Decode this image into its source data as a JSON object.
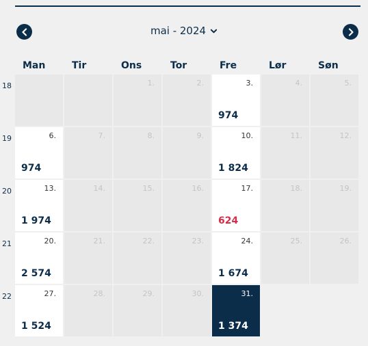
{
  "header": {
    "month_label": "mai - 2024",
    "prev_icon": "chevron-left-icon",
    "next_icon": "chevron-right-icon",
    "dropdown_icon": "chevron-down-icon",
    "accent_color": "#0b2d4a",
    "highlight_color": "#d32f4a"
  },
  "weekdays": [
    "Man",
    "Tir",
    "Ons",
    "Tor",
    "Fre",
    "Lør",
    "Søn"
  ],
  "weeks": [
    {
      "number": "18",
      "days": [
        {
          "label": "",
          "price": ""
        },
        {
          "label": "",
          "price": ""
        },
        {
          "label": "1.",
          "price": ""
        },
        {
          "label": "2.",
          "price": ""
        },
        {
          "label": "3.",
          "price": "974",
          "available": true
        },
        {
          "label": "4.",
          "price": ""
        },
        {
          "label": "5.",
          "price": ""
        }
      ]
    },
    {
      "number": "19",
      "days": [
        {
          "label": "6.",
          "price": "974",
          "available": true
        },
        {
          "label": "7.",
          "price": ""
        },
        {
          "label": "8.",
          "price": ""
        },
        {
          "label": "9.",
          "price": ""
        },
        {
          "label": "10.",
          "price": "1 824",
          "available": true
        },
        {
          "label": "11.",
          "price": ""
        },
        {
          "label": "12.",
          "price": ""
        }
      ]
    },
    {
      "number": "20",
      "days": [
        {
          "label": "13.",
          "price": "1 974",
          "available": true
        },
        {
          "label": "14.",
          "price": ""
        },
        {
          "label": "15.",
          "price": ""
        },
        {
          "label": "16.",
          "price": ""
        },
        {
          "label": "17.",
          "price": "624",
          "available": true,
          "lowest": true
        },
        {
          "label": "18.",
          "price": ""
        },
        {
          "label": "19.",
          "price": ""
        }
      ]
    },
    {
      "number": "21",
      "days": [
        {
          "label": "20.",
          "price": "2 574",
          "available": true
        },
        {
          "label": "21.",
          "price": ""
        },
        {
          "label": "22.",
          "price": ""
        },
        {
          "label": "23.",
          "price": ""
        },
        {
          "label": "24.",
          "price": "1 674",
          "available": true
        },
        {
          "label": "25.",
          "price": ""
        },
        {
          "label": "26.",
          "price": ""
        }
      ]
    },
    {
      "number": "22",
      "days": [
        {
          "label": "27.",
          "price": "1 524",
          "available": true
        },
        {
          "label": "28.",
          "price": ""
        },
        {
          "label": "29.",
          "price": ""
        },
        {
          "label": "30.",
          "price": ""
        },
        {
          "label": "31.",
          "price": "1 374",
          "available": true,
          "selected": true
        },
        {
          "label": "",
          "price": "",
          "hidden": true
        },
        {
          "label": "",
          "price": "",
          "hidden": true
        }
      ]
    }
  ]
}
